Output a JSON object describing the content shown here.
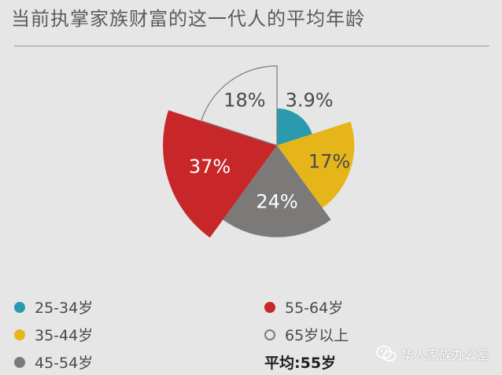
{
  "header": {
    "title": "当前执掌家族财富的这一代人的平均年龄"
  },
  "chart_data": {
    "type": "pie",
    "title": "当前执掌家族财富的这一代人的平均年龄",
    "slices": [
      {
        "label": "25-34岁",
        "value": 3.9,
        "display": "3.9%",
        "color": "#2a9aae",
        "hollow": false
      },
      {
        "label": "35-44岁",
        "value": 17,
        "display": "17%",
        "color": "#e6b51a",
        "hollow": false
      },
      {
        "label": "45-54岁",
        "value": 24,
        "display": "24%",
        "color": "#7b7a78",
        "hollow": false
      },
      {
        "label": "55-64岁",
        "value": 37,
        "display": "37%",
        "color": "#c8272a",
        "hollow": false
      },
      {
        "label": "65岁以上",
        "value": 18,
        "display": "18%",
        "color": "#7a7a7a",
        "hollow": true
      }
    ]
  },
  "legend": {
    "items": [
      {
        "label": "25-34岁",
        "color": "#2a9aae",
        "hollow": false
      },
      {
        "label": "35-44岁",
        "color": "#e6b51a",
        "hollow": false
      },
      {
        "label": "45-54岁",
        "color": "#7b7a78",
        "hollow": false
      },
      {
        "label": "55-64岁",
        "color": "#c8272a",
        "hollow": false
      },
      {
        "label": "65岁以上",
        "color": "#7a7a7a",
        "hollow": true
      }
    ]
  },
  "average": "平均:55岁",
  "watermark": {
    "text": "华人家族办公室",
    "icon": "wechat-icon"
  }
}
